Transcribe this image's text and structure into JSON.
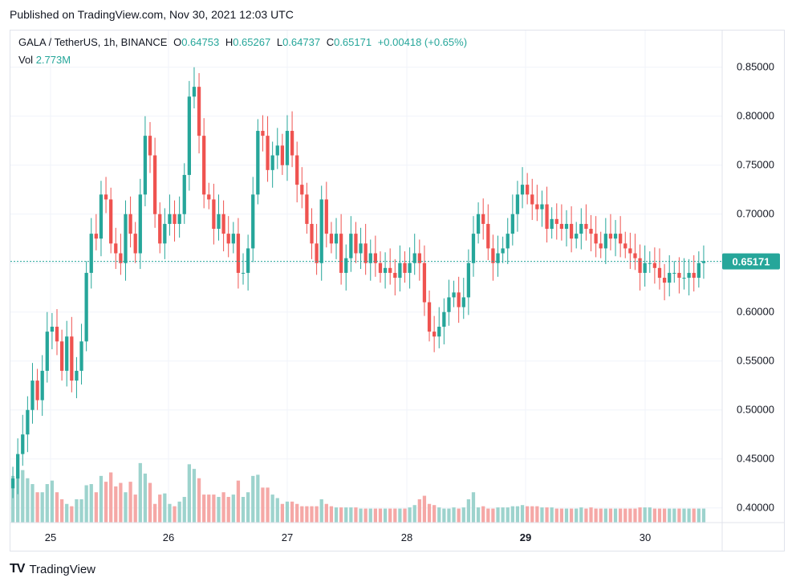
{
  "header": {
    "published": "Published on TradingView.com, Nov 30, 2021 12:03 UTC"
  },
  "legend": {
    "symbol": "GALA / TetherUS, 1h, BINANCE",
    "open_label": "O",
    "open": "0.64753",
    "high_label": "H",
    "high": "0.65267",
    "low_label": "L",
    "low": "0.64737",
    "close_label": "C",
    "close": "0.65171",
    "change": "+0.00418 (+0.65%)",
    "vol_label": "Vol",
    "vol": "2.773M"
  },
  "footer": {
    "brand": "TradingView"
  },
  "colors": {
    "up": "#26a69a",
    "down": "#ef5350",
    "up_vol": "#9dd3cd",
    "down_vol": "#f5a8a6",
    "grid": "#f0f3fa",
    "last_price": "#26a69a"
  },
  "chart_data": {
    "type": "candlestick",
    "title": "GALA / TetherUS, 1h, BINANCE",
    "xlabel": "",
    "ylabel": "",
    "ylim": [
      0.385,
      0.8875
    ],
    "y_ticks": [
      "0.85000",
      "0.80000",
      "0.75000",
      "0.70000",
      "0.65000",
      "0.60000",
      "0.55000",
      "0.50000",
      "0.45000",
      "0.40000"
    ],
    "x_ticks": [
      "25",
      "26",
      "27",
      "28",
      "29",
      "30"
    ],
    "last_price_label": "0.65171",
    "last_price": 0.65171,
    "grid": true,
    "closes": [
      0.43,
      0.455,
      0.475,
      0.5,
      0.53,
      0.51,
      0.54,
      0.58,
      0.585,
      0.57,
      0.54,
      0.575,
      0.53,
      0.54,
      0.57,
      0.64,
      0.68,
      0.675,
      0.72,
      0.715,
      0.67,
      0.66,
      0.65,
      0.7,
      0.68,
      0.66,
      0.72,
      0.78,
      0.76,
      0.7,
      0.67,
      0.69,
      0.7,
      0.69,
      0.7,
      0.74,
      0.82,
      0.83,
      0.78,
      0.72,
      0.715,
      0.685,
      0.7,
      0.68,
      0.67,
      0.68,
      0.64,
      0.64,
      0.665,
      0.72,
      0.785,
      0.78,
      0.745,
      0.76,
      0.77,
      0.75,
      0.785,
      0.76,
      0.73,
      0.72,
      0.69,
      0.67,
      0.65,
      0.715,
      0.68,
      0.67,
      0.68,
      0.64,
      0.655,
      0.68,
      0.66,
      0.67,
      0.65,
      0.66,
      0.65,
      0.64,
      0.645,
      0.64,
      0.635,
      0.65,
      0.64,
      0.65,
      0.66,
      0.65,
      0.61,
      0.58,
      0.575,
      0.585,
      0.6,
      0.615,
      0.62,
      0.605,
      0.615,
      0.65,
      0.68,
      0.7,
      0.69,
      0.665,
      0.65,
      0.66,
      0.665,
      0.68,
      0.7,
      0.72,
      0.73,
      0.72,
      0.71,
      0.705,
      0.71,
      0.685,
      0.695,
      0.69,
      0.685,
      0.69,
      0.675,
      0.68,
      0.69,
      0.685,
      0.68,
      0.67,
      0.665,
      0.68,
      0.675,
      0.68,
      0.67,
      0.665,
      0.66,
      0.655,
      0.64,
      0.65,
      0.65,
      0.645,
      0.635,
      0.63,
      0.64,
      0.64,
      0.635,
      0.635,
      0.64,
      0.635,
      0.65,
      0.652
    ],
    "volumes": [
      0.4,
      0.45,
      0.45,
      0.38,
      0.33,
      0.26,
      0.26,
      0.33,
      0.36,
      0.26,
      0.2,
      0.16,
      0.14,
      0.2,
      0.2,
      0.32,
      0.33,
      0.26,
      0.4,
      0.35,
      0.43,
      0.31,
      0.34,
      0.26,
      0.35,
      0.24,
      0.51,
      0.42,
      0.34,
      0.16,
      0.24,
      0.25,
      0.16,
      0.14,
      0.18,
      0.22,
      0.5,
      0.46,
      0.38,
      0.24,
      0.24,
      0.24,
      0.22,
      0.26,
      0.22,
      0.24,
      0.36,
      0.22,
      0.26,
      0.4,
      0.41,
      0.3,
      0.3,
      0.24,
      0.21,
      0.16,
      0.18,
      0.18,
      0.16,
      0.14,
      0.14,
      0.14,
      0.14,
      0.2,
      0.16,
      0.14,
      0.13,
      0.13,
      0.13,
      0.13,
      0.13,
      0.12,
      0.12,
      0.12,
      0.12,
      0.12,
      0.12,
      0.12,
      0.12,
      0.12,
      0.12,
      0.13,
      0.15,
      0.2,
      0.23,
      0.16,
      0.15,
      0.13,
      0.12,
      0.12,
      0.13,
      0.12,
      0.13,
      0.2,
      0.26,
      0.13,
      0.14,
      0.12,
      0.12,
      0.13,
      0.13,
      0.13,
      0.14,
      0.14,
      0.15,
      0.14,
      0.14,
      0.14,
      0.13,
      0.13,
      0.13,
      0.12,
      0.12,
      0.12,
      0.12,
      0.12,
      0.13,
      0.12,
      0.13,
      0.12,
      0.12,
      0.12,
      0.12,
      0.12,
      0.12,
      0.12,
      0.12,
      0.12,
      0.13,
      0.13,
      0.13,
      0.12,
      0.12,
      0.12,
      0.12,
      0.12,
      0.12,
      0.12,
      0.12,
      0.12,
      0.12,
      0.12
    ],
    "volume_ylim": [
      0,
      1.0
    ]
  }
}
